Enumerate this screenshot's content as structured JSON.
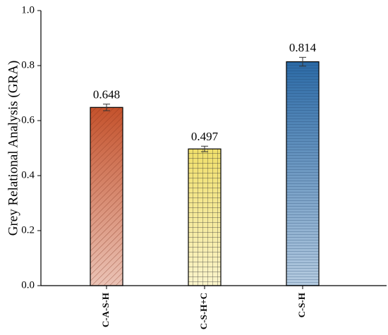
{
  "chart_data": {
    "type": "bar",
    "y_label": "Grey Relational Analysis (GRA)",
    "categories": [
      "C-A-S-H",
      "C-S-H+C",
      "C-S-H"
    ],
    "values": [
      0.648,
      0.497,
      0.814
    ],
    "errors": [
      0.012,
      0.01,
      0.016
    ],
    "colors": [
      "#c4522c",
      "#f0df6a",
      "#2b6aa6"
    ],
    "hatches": [
      "diagonal",
      "grid",
      "horizontal"
    ],
    "ylim": [
      0,
      1
    ],
    "yticks": [
      {
        "value": 0,
        "label": "0.0"
      },
      0.2,
      0.4,
      0.6,
      0.8,
      {
        "value": 1,
        "label": "1.0"
      }
    ]
  }
}
